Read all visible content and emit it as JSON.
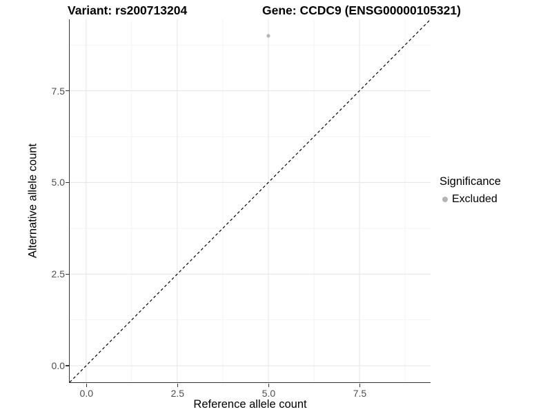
{
  "chart_data": {
    "type": "scatter",
    "title_left": "Variant: rs200713204",
    "title_right": "Gene: CCDC9 (ENSG00000105321)",
    "xlabel": "Reference allele count",
    "ylabel": "Alternative allele count",
    "xlim": [
      -0.45,
      9.45
    ],
    "ylim": [
      -0.45,
      9.45
    ],
    "xticks": {
      "values": [
        0,
        2.5,
        5,
        7.5
      ],
      "labels": [
        "0.0",
        "2.5",
        "5.0",
        "7.5"
      ]
    },
    "yticks": {
      "values": [
        0,
        2.5,
        5,
        7.5
      ],
      "labels": [
        "0.0",
        "2.5",
        "5.0",
        "7.5"
      ]
    },
    "minor_ticks": [
      1.25,
      3.75,
      6.25,
      8.75
    ],
    "grid": "major and minor, light gray on white",
    "points": [
      {
        "x": 5,
        "y": 9,
        "series": "Excluded"
      }
    ],
    "reference_line": {
      "type": "identity y=x",
      "style": "dashed",
      "color": "#000000"
    },
    "legend": {
      "position": "right",
      "title": "Significance",
      "items": [
        {
          "label": "Excluded",
          "color": "#b4b4b4"
        }
      ]
    },
    "colors": {
      "point": "#b4b4b4",
      "grid_major": "#e7e7e7",
      "grid_minor": "#f3f3f3",
      "axis_line": "#333333",
      "tick_text": "#4d4d4d",
      "title_text": "#000000"
    }
  }
}
